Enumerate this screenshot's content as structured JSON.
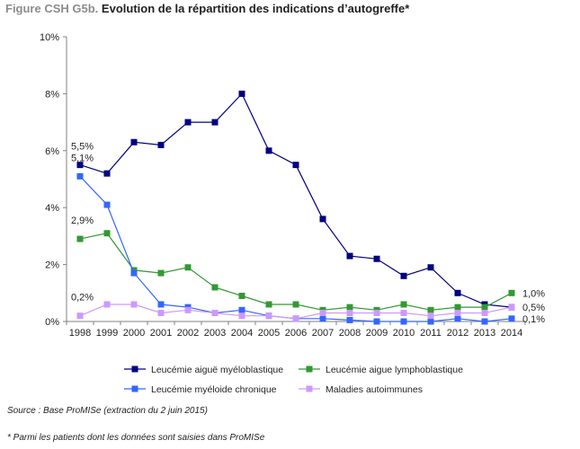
{
  "title_prefix": "Figure CSH G5b.",
  "title_main": "Evolution de la répartition des indications d’autogreffe*",
  "source": "Source : Base ProMISe (extraction du 2 juin 2015)",
  "footnote": "* Parmi les patients dont les données sont saisies dans ProMISe",
  "chart_data": {
    "type": "line",
    "x": [
      "1998",
      "1999",
      "2000",
      "2001",
      "2002",
      "2003",
      "2004",
      "2005",
      "2006",
      "2007",
      "2008",
      "2009",
      "2010",
      "2011",
      "2012",
      "2013",
      "2014"
    ],
    "ylim": [
      0,
      10
    ],
    "yticks": [
      "0%",
      "2%",
      "4%",
      "6%",
      "8%",
      "10%"
    ],
    "grid": false,
    "legend_position": "bottom",
    "series": [
      {
        "name": "Leucémie aiguë myéloblastique",
        "color": "#000080",
        "values": [
          5.5,
          5.2,
          6.3,
          6.2,
          7.0,
          7.0,
          8.0,
          6.0,
          5.5,
          3.6,
          2.3,
          2.2,
          1.6,
          1.9,
          1.0,
          0.6,
          0.5
        ]
      },
      {
        "name": "Leucémie aigue lymphoblastique",
        "color": "#339933",
        "values": [
          2.9,
          3.1,
          1.8,
          1.7,
          1.9,
          1.2,
          0.9,
          0.6,
          0.6,
          0.4,
          0.5,
          0.4,
          0.6,
          0.4,
          0.5,
          0.5,
          1.0
        ]
      },
      {
        "name": "Leucémie myéloide chronique",
        "color": "#3366ff",
        "values": [
          5.1,
          4.1,
          1.7,
          0.6,
          0.5,
          0.3,
          0.4,
          0.2,
          0.1,
          0.1,
          0.05,
          0.0,
          0.0,
          0.0,
          0.1,
          0.0,
          0.1
        ]
      },
      {
        "name": "Maladies autoimmunes",
        "color": "#cc99ff",
        "values": [
          0.2,
          0.6,
          0.6,
          0.3,
          0.4,
          0.3,
          0.2,
          0.2,
          0.1,
          0.3,
          0.3,
          0.3,
          0.3,
          0.2,
          0.3,
          0.3,
          0.5
        ]
      }
    ],
    "annotations": [
      {
        "text": "5,5%",
        "series": 0,
        "index": 0,
        "side": "left"
      },
      {
        "text": "5,1%",
        "series": 2,
        "index": 0,
        "side": "left"
      },
      {
        "text": "2,9%",
        "series": 1,
        "index": 0,
        "side": "left"
      },
      {
        "text": "0,2%",
        "series": 3,
        "index": 0,
        "side": "left"
      },
      {
        "text": "1,0%",
        "series": 1,
        "index": 16,
        "side": "right"
      },
      {
        "text": "0,5%",
        "series": 0,
        "index": 16,
        "side": "right"
      },
      {
        "text": "0,1%",
        "series": 2,
        "index": 16,
        "side": "right"
      }
    ]
  }
}
